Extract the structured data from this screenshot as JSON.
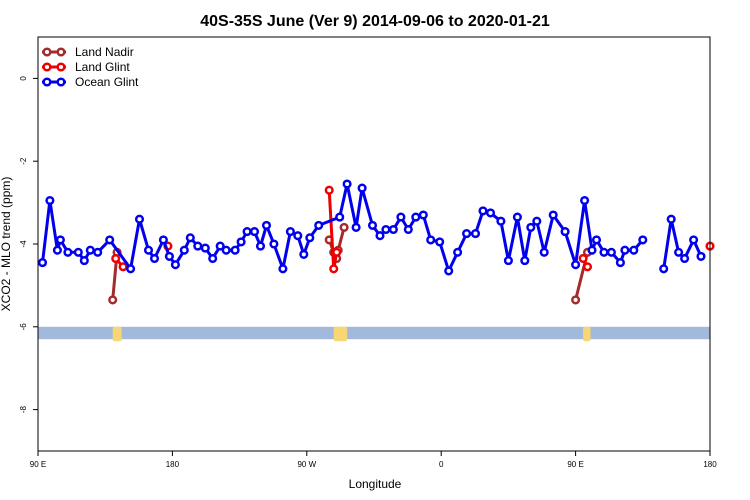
{
  "chart_data": {
    "type": "line",
    "title": "40S-35S June (Ver 9)   2014-09-06 to 2020-01-21",
    "xlabel": "Longitude",
    "ylabel": "XCO2 - MLO trend (ppm)",
    "xlim": [
      90,
      540
    ],
    "ylim": [
      -9,
      1
    ],
    "x_ticks": [
      {
        "value": 90,
        "label": "90 E"
      },
      {
        "value": 180,
        "label": "180"
      },
      {
        "value": 270,
        "label": "90 W"
      },
      {
        "value": 360,
        "label": "0"
      },
      {
        "value": 450,
        "label": "90 E"
      },
      {
        "value": 540,
        "label": "180"
      }
    ],
    "y_ticks": [
      {
        "value": 0,
        "label": "0"
      },
      {
        "value": -2,
        "label": "-2"
      },
      {
        "value": -4,
        "label": "-4"
      },
      {
        "value": -6,
        "label": "-6"
      },
      {
        "value": -8,
        "label": "-8"
      }
    ],
    "legend_position": "top-left",
    "ocean_band": {
      "y_from": -6.0,
      "y_to": -6.3,
      "color": "#a3b9dc",
      "land_color": "#f7d774"
    },
    "series": [
      {
        "name": "Land Nadir",
        "color": "#a52a2a",
        "segments": [
          [
            [
              140,
              -5.35
            ],
            [
              143,
              -4.2
            ]
          ],
          [
            [
              285,
              -3.9
            ],
            [
              288,
              -4.2
            ]
          ],
          [
            [
              290,
              -4.35
            ],
            [
              291,
              -4.15
            ],
            [
              295,
              -3.6
            ]
          ],
          [
            [
              450,
              -5.35
            ],
            [
              458,
              -4.2
            ]
          ]
        ]
      },
      {
        "name": "Land Glint",
        "color": "#ee0000",
        "segments": [
          [
            [
              142,
              -4.35
            ],
            [
              147,
              -4.55
            ]
          ],
          [
            [
              177,
              -4.05
            ]
          ],
          [
            [
              285,
              -2.7
            ],
            [
              288,
              -4.6
            ],
            [
              290,
              -4.2
            ]
          ],
          [
            [
              455,
              -4.35
            ],
            [
              458,
              -4.55
            ]
          ],
          [
            [
              540,
              -4.05
            ]
          ]
        ]
      },
      {
        "name": "Ocean Glint",
        "color": "#0000ee",
        "segments": [
          [
            [
              93,
              -4.45
            ],
            [
              98,
              -2.95
            ],
            [
              103,
              -4.15
            ],
            [
              105,
              -3.9
            ],
            [
              110,
              -4.2
            ],
            [
              117,
              -4.2
            ],
            [
              121,
              -4.4
            ],
            [
              125,
              -4.15
            ],
            [
              130,
              -4.2
            ],
            [
              138,
              -3.9
            ],
            [
              152,
              -4.6
            ],
            [
              158,
              -3.4
            ],
            [
              164,
              -4.15
            ],
            [
              168,
              -4.35
            ],
            [
              174,
              -3.9
            ],
            [
              178,
              -4.3
            ],
            [
              182,
              -4.5
            ],
            [
              188,
              -4.15
            ],
            [
              192,
              -3.85
            ],
            [
              197,
              -4.05
            ],
            [
              202,
              -4.1
            ],
            [
              207,
              -4.35
            ],
            [
              212,
              -4.05
            ],
            [
              216,
              -4.15
            ],
            [
              222,
              -4.15
            ],
            [
              226,
              -3.95
            ],
            [
              230,
              -3.7
            ],
            [
              235,
              -3.7
            ],
            [
              239,
              -4.05
            ],
            [
              243,
              -3.55
            ],
            [
              248,
              -4.0
            ],
            [
              254,
              -4.6
            ],
            [
              259,
              -3.7
            ],
            [
              264,
              -3.8
            ],
            [
              268,
              -4.25
            ],
            [
              272,
              -3.85
            ],
            [
              278,
              -3.55
            ],
            [
              292,
              -3.35
            ],
            [
              297,
              -2.55
            ],
            [
              303,
              -3.6
            ],
            [
              307,
              -2.65
            ],
            [
              314,
              -3.55
            ],
            [
              319,
              -3.8
            ],
            [
              323,
              -3.65
            ],
            [
              328,
              -3.65
            ],
            [
              333,
              -3.35
            ],
            [
              338,
              -3.65
            ],
            [
              343,
              -3.35
            ],
            [
              348,
              -3.3
            ],
            [
              353,
              -3.9
            ],
            [
              359,
              -3.95
            ],
            [
              365,
              -4.65
            ],
            [
              371,
              -4.2
            ],
            [
              377,
              -3.75
            ],
            [
              383,
              -3.75
            ],
            [
              388,
              -3.2
            ],
            [
              393,
              -3.25
            ],
            [
              400,
              -3.45
            ],
            [
              405,
              -4.4
            ],
            [
              411,
              -3.35
            ],
            [
              416,
              -4.4
            ],
            [
              420,
              -3.6
            ],
            [
              424,
              -3.45
            ],
            [
              429,
              -4.2
            ],
            [
              435,
              -3.3
            ],
            [
              443,
              -3.7
            ],
            [
              450,
              -4.5
            ],
            [
              456,
              -2.95
            ],
            [
              461,
              -4.15
            ],
            [
              464,
              -3.9
            ],
            [
              469,
              -4.2
            ],
            [
              474,
              -4.2
            ],
            [
              480,
              -4.45
            ],
            [
              483,
              -4.15
            ],
            [
              489,
              -4.15
            ],
            [
              495,
              -3.9
            ]
          ],
          [
            [
              509,
              -4.6
            ],
            [
              514,
              -3.4
            ],
            [
              519,
              -4.2
            ],
            [
              523,
              -4.35
            ],
            [
              529,
              -3.9
            ],
            [
              534,
              -4.3
            ]
          ]
        ]
      }
    ]
  }
}
